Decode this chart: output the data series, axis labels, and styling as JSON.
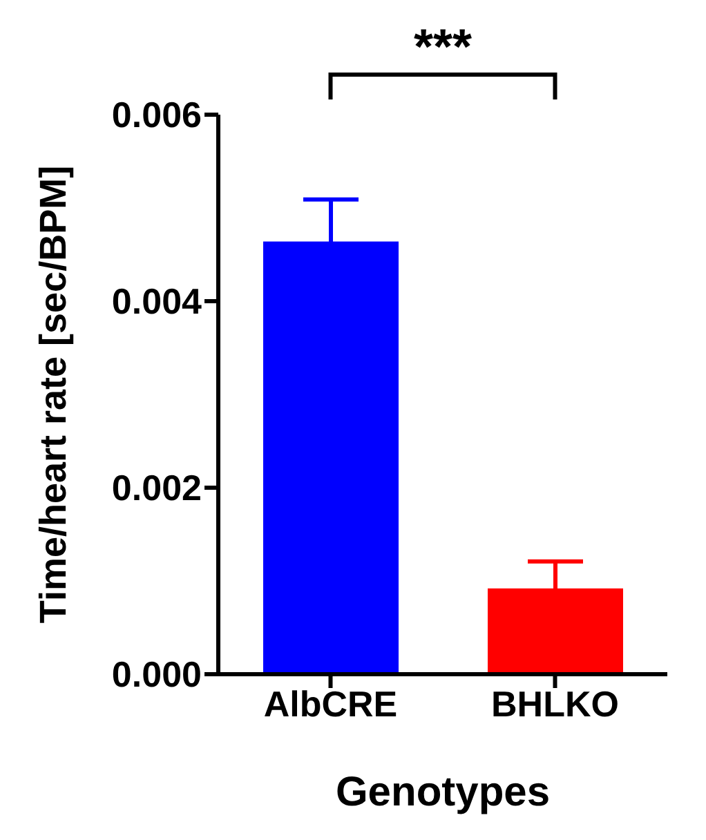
{
  "chart_data": {
    "type": "bar",
    "categories": [
      "AlbCRE",
      "BHLKO"
    ],
    "values": [
      0.00464,
      0.00092
    ],
    "colors": [
      "#0000ff",
      "#ff0000"
    ],
    "errors": [
      0.00045,
      0.00029
    ],
    "xlabel": "Genotypes",
    "ylabel": "Time/heart rate [sec/BPM]",
    "ylim": [
      0,
      0.006
    ],
    "yticks": [
      {
        "value": 0,
        "label": "0.000"
      },
      {
        "value": 0.002,
        "label": "0.002"
      },
      {
        "value": 0.004,
        "label": "0.004"
      },
      {
        "value": 0.006,
        "label": "0.006"
      }
    ],
    "annotations": [
      "***"
    ],
    "grid": false,
    "legend": false
  }
}
